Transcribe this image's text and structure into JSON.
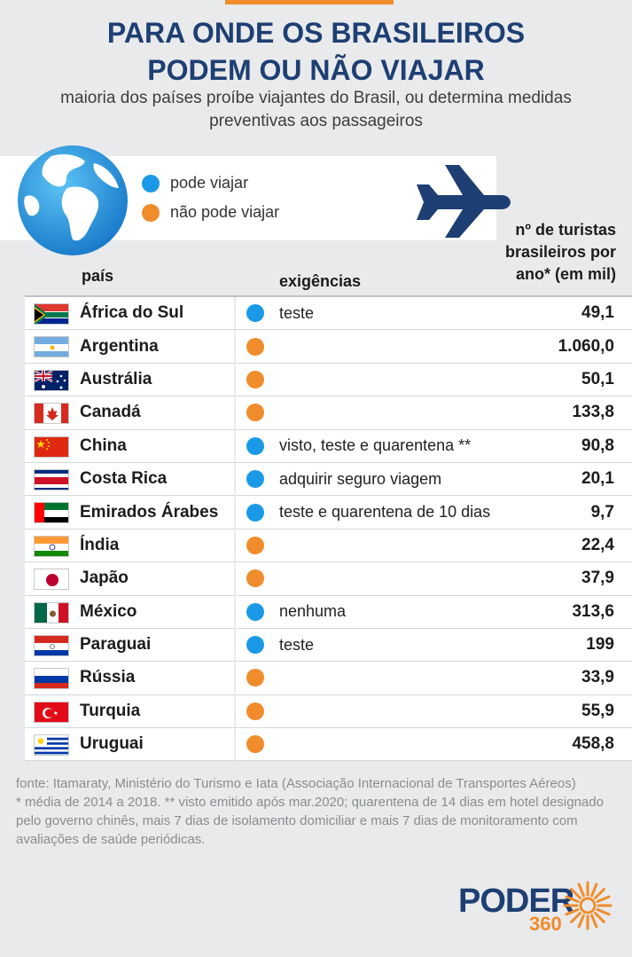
{
  "title_lines": [
    "PARA ONDE OS BRASILEIROS",
    "PODEM OU NÃO VIAJAR"
  ],
  "subtitle_lines": [
    "maioria dos países proíbe viajantes do Brasil, ou determina medidas",
    "preventivas aos passageiros"
  ],
  "legend": {
    "can_travel": "pode viajar",
    "cannot_travel": "não pode viajar"
  },
  "colors": {
    "can": "#1a9ae6",
    "cannot": "#f08c2c",
    "navy": "#1e3f74"
  },
  "icons": [
    "globe-icon",
    "airplane-icon"
  ],
  "headers": {
    "country": "país",
    "requirements": "exigências",
    "tourists_lines": [
      "nº de turistas",
      "brasileiros por",
      "ano* (em mil)"
    ]
  },
  "rows": [
    {
      "country": "África do Sul",
      "status": "can",
      "requirement": "teste",
      "value": "49,1",
      "flag": "za"
    },
    {
      "country": "Argentina",
      "status": "cannot",
      "requirement": "",
      "value": "1.060,0",
      "flag": "ar"
    },
    {
      "country": "Austrália",
      "status": "cannot",
      "requirement": "",
      "value": "50,1",
      "flag": "au"
    },
    {
      "country": "Canadá",
      "status": "cannot",
      "requirement": "",
      "value": "133,8",
      "flag": "ca"
    },
    {
      "country": "China",
      "status": "can",
      "requirement": "visto, teste e quarentena **",
      "value": "90,8",
      "flag": "cn"
    },
    {
      "country": "Costa Rica",
      "status": "can",
      "requirement": "adquirir seguro viagem",
      "value": "20,1",
      "flag": "cr"
    },
    {
      "country": "Emirados Árabes",
      "status": "can",
      "requirement": "teste e quarentena de 10 dias",
      "value": "9,7",
      "flag": "ae"
    },
    {
      "country": "Índia",
      "status": "cannot",
      "requirement": "",
      "value": "22,4",
      "flag": "in"
    },
    {
      "country": "Japão",
      "status": "cannot",
      "requirement": "",
      "value": "37,9",
      "flag": "jp"
    },
    {
      "country": "México",
      "status": "can",
      "requirement": "nenhuma",
      "value": "313,6",
      "flag": "mx"
    },
    {
      "country": "Paraguai",
      "status": "can",
      "requirement": "teste",
      "value": "199",
      "flag": "py"
    },
    {
      "country": "Rússia",
      "status": "cannot",
      "requirement": "",
      "value": "33,9",
      "flag": "ru"
    },
    {
      "country": "Turquia",
      "status": "cannot",
      "requirement": "",
      "value": "55,9",
      "flag": "tr"
    },
    {
      "country": "Uruguai",
      "status": "cannot",
      "requirement": "",
      "value": "458,8",
      "flag": "uy"
    }
  ],
  "notes": {
    "source": "fonte: Itamaraty, Ministério do Turismo e Iata (Associação Internacional de Transportes Aéreos)",
    "footnote": "* média de 2014 a 2018. ** visto emitido após mar.2020; quarentena de 14 dias em hotel designado pelo governo chinês, mais 7 dias de isolamento domiciliar e mais 7 dias de monitoramento com avaliações de saúde periódicas."
  },
  "logo": {
    "name": "PODER",
    "number": "360"
  }
}
